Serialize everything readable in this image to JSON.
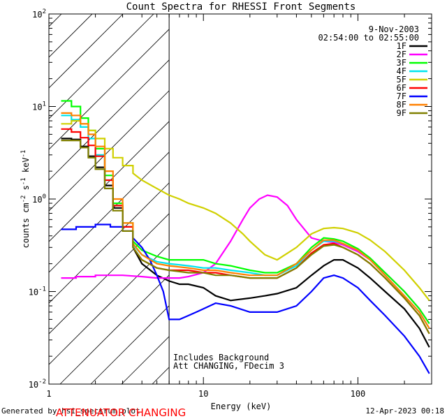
{
  "chart_data": {
    "type": "line",
    "title": "Count Spectra for RHESSI Front Segments",
    "xlabel": "Energy (keV)",
    "ylabel": "counts cm^-2 s^-1 keV^-1",
    "xscale": "log",
    "yscale": "log",
    "xlim": [
      1,
      300
    ],
    "ylim": [
      0.01,
      100
    ],
    "x_ticks": [
      "1",
      "10",
      "100"
    ],
    "y_ticks": [
      "10^-2",
      "10^-1",
      "10^0",
      "10^1",
      "10^2"
    ],
    "legend_location": "top-right",
    "shaded_region_keV": [
      1,
      6
    ],
    "date": "9-Nov-2003",
    "time_range": "02:54:00 to 02:55:00",
    "annotations": [
      "Includes Background",
      "Att CHANGING, FDecim 3"
    ],
    "series": [
      {
        "name": "1F",
        "color": "#000000",
        "x": [
          1.2,
          1.4,
          1.6,
          1.8,
          2.0,
          2.3,
          2.6,
          3.0,
          3.5,
          4.0,
          5.0,
          6.0,
          7.0,
          8.0,
          10.0,
          12.0,
          15.0,
          20.0,
          25.0,
          30.0,
          40.0,
          50.0,
          60.0,
          70.0,
          80.0,
          100.0,
          120.0,
          150.0,
          200.0,
          250.0,
          290.0
        ],
        "y": [
          4.5,
          4.4,
          3.7,
          2.9,
          2.2,
          1.4,
          0.8,
          0.5,
          0.3,
          0.2,
          0.15,
          0.13,
          0.12,
          0.12,
          0.11,
          0.09,
          0.08,
          0.085,
          0.09,
          0.095,
          0.11,
          0.15,
          0.19,
          0.22,
          0.22,
          0.18,
          0.14,
          0.1,
          0.065,
          0.04,
          0.025
        ]
      },
      {
        "name": "2F",
        "color": "#ff00ff",
        "x": [
          1.2,
          1.5,
          2.0,
          3.0,
          4.0,
          5.0,
          6.0,
          7.0,
          8.0,
          10.0,
          12.0,
          15.0,
          18.0,
          20.0,
          23.0,
          26.0,
          30.0,
          35.0,
          40.0,
          50.0,
          60.0,
          70.0,
          80.0,
          100.0,
          120.0,
          150.0,
          200.0,
          250.0,
          290.0
        ],
        "y": [
          0.14,
          0.145,
          0.15,
          0.15,
          0.145,
          0.14,
          0.14,
          0.14,
          0.145,
          0.16,
          0.2,
          0.35,
          0.6,
          0.8,
          1.0,
          1.1,
          1.05,
          0.85,
          0.6,
          0.38,
          0.35,
          0.34,
          0.32,
          0.27,
          0.22,
          0.16,
          0.1,
          0.065,
          0.045
        ]
      },
      {
        "name": "3F",
        "color": "#00ff00",
        "x": [
          1.2,
          1.4,
          1.6,
          1.8,
          2.0,
          2.3,
          2.6,
          3.0,
          3.5,
          4.0,
          5.0,
          6.0,
          8.0,
          10.0,
          12.0,
          15.0,
          20.0,
          25.0,
          30.0,
          40.0,
          50.0,
          60.0,
          70.0,
          80.0,
          100.0,
          120.0,
          150.0,
          200.0,
          250.0,
          290.0
        ],
        "y": [
          11.5,
          10.0,
          7.5,
          5.5,
          3.5,
          1.8,
          0.9,
          0.55,
          0.35,
          0.28,
          0.24,
          0.22,
          0.22,
          0.22,
          0.2,
          0.19,
          0.17,
          0.16,
          0.16,
          0.2,
          0.3,
          0.38,
          0.37,
          0.35,
          0.29,
          0.23,
          0.16,
          0.1,
          0.065,
          0.045
        ]
      },
      {
        "name": "4F",
        "color": "#00e5ee",
        "x": [
          1.2,
          1.4,
          1.6,
          1.8,
          2.0,
          2.3,
          2.6,
          3.0,
          3.5,
          4.0,
          5.0,
          6.0,
          8.0,
          10.0,
          12.0,
          15.0,
          20.0,
          25.0,
          30.0,
          40.0,
          50.0,
          60.0,
          70.0,
          80.0,
          100.0,
          120.0,
          150.0,
          200.0,
          250.0,
          290.0
        ],
        "y": [
          8.0,
          7.2,
          6.0,
          4.5,
          3.0,
          1.6,
          0.85,
          0.5,
          0.32,
          0.25,
          0.21,
          0.2,
          0.19,
          0.18,
          0.18,
          0.17,
          0.16,
          0.15,
          0.15,
          0.19,
          0.28,
          0.35,
          0.35,
          0.33,
          0.28,
          0.22,
          0.15,
          0.09,
          0.06,
          0.04
        ]
      },
      {
        "name": "5F",
        "color": "#d0d000",
        "x": [
          1.2,
          1.4,
          1.6,
          1.8,
          2.0,
          2.3,
          2.6,
          3.0,
          3.5,
          4.0,
          5.0,
          6.0,
          7.0,
          8.0,
          10.0,
          12.0,
          15.0,
          18.0,
          20.0,
          25.0,
          30.0,
          40.0,
          50.0,
          60.0,
          70.0,
          80.0,
          100.0,
          120.0,
          150.0,
          200.0,
          250.0,
          290.0
        ],
        "y": [
          6.5,
          7.0,
          6.5,
          5.5,
          4.5,
          3.5,
          2.8,
          2.3,
          1.9,
          1.6,
          1.3,
          1.1,
          1.0,
          0.9,
          0.8,
          0.7,
          0.55,
          0.42,
          0.35,
          0.25,
          0.22,
          0.3,
          0.42,
          0.48,
          0.49,
          0.48,
          0.43,
          0.36,
          0.27,
          0.17,
          0.11,
          0.08
        ]
      },
      {
        "name": "6F",
        "color": "#ff0000",
        "x": [
          1.2,
          1.4,
          1.6,
          1.8,
          2.0,
          2.3,
          2.6,
          3.0,
          3.5,
          4.0,
          5.0,
          6.0,
          8.0,
          10.0,
          12.0,
          15.0,
          20.0,
          25.0,
          30.0,
          40.0,
          50.0,
          60.0,
          70.0,
          80.0,
          100.0,
          120.0,
          150.0,
          200.0,
          250.0,
          290.0
        ],
        "y": [
          5.7,
          5.3,
          4.6,
          3.8,
          2.9,
          1.6,
          0.85,
          0.5,
          0.3,
          0.22,
          0.18,
          0.17,
          0.17,
          0.16,
          0.16,
          0.15,
          0.14,
          0.14,
          0.14,
          0.18,
          0.26,
          0.32,
          0.33,
          0.3,
          0.25,
          0.2,
          0.14,
          0.085,
          0.055,
          0.035
        ]
      },
      {
        "name": "7F",
        "color": "#0000ff",
        "x": [
          1.2,
          1.5,
          2.0,
          2.5,
          3.0,
          3.5,
          4.0,
          4.5,
          5.0,
          5.5,
          6.0,
          7.0,
          8.0,
          9.0,
          10.0,
          12.0,
          15.0,
          20.0,
          25.0,
          30.0,
          40.0,
          50.0,
          60.0,
          70.0,
          80.0,
          100.0,
          120.0,
          150.0,
          200.0,
          250.0,
          290.0
        ],
        "y": [
          0.47,
          0.5,
          0.53,
          0.5,
          0.45,
          0.38,
          0.3,
          0.22,
          0.15,
          0.1,
          0.05,
          0.05,
          0.055,
          0.06,
          0.065,
          0.075,
          0.07,
          0.06,
          0.06,
          0.06,
          0.07,
          0.1,
          0.14,
          0.15,
          0.14,
          0.11,
          0.08,
          0.055,
          0.033,
          0.02,
          0.013
        ]
      },
      {
        "name": "8F",
        "color": "#ff8000",
        "x": [
          1.2,
          1.4,
          1.6,
          1.8,
          2.0,
          2.3,
          2.6,
          3.0,
          3.5,
          4.0,
          5.0,
          6.0,
          8.0,
          10.0,
          12.0,
          15.0,
          20.0,
          25.0,
          30.0,
          40.0,
          50.0,
          60.0,
          70.0,
          80.0,
          100.0,
          120.0,
          150.0,
          200.0,
          250.0,
          290.0
        ],
        "y": [
          8.5,
          8.0,
          6.5,
          5.0,
          3.7,
          2.0,
          1.0,
          0.55,
          0.33,
          0.25,
          0.2,
          0.19,
          0.18,
          0.17,
          0.17,
          0.16,
          0.15,
          0.15,
          0.15,
          0.2,
          0.28,
          0.36,
          0.36,
          0.33,
          0.28,
          0.22,
          0.15,
          0.09,
          0.06,
          0.04
        ]
      },
      {
        "name": "9F",
        "color": "#808000",
        "x": [
          1.2,
          1.4,
          1.6,
          1.8,
          2.0,
          2.3,
          2.6,
          3.0,
          3.5,
          4.0,
          5.0,
          6.0,
          8.0,
          10.0,
          12.0,
          15.0,
          20.0,
          25.0,
          30.0,
          40.0,
          50.0,
          60.0,
          70.0,
          80.0,
          100.0,
          120.0,
          150.0,
          200.0,
          250.0,
          290.0
        ],
        "y": [
          4.3,
          4.3,
          3.6,
          2.8,
          2.1,
          1.3,
          0.75,
          0.45,
          0.3,
          0.22,
          0.18,
          0.17,
          0.16,
          0.16,
          0.15,
          0.15,
          0.14,
          0.14,
          0.14,
          0.18,
          0.25,
          0.31,
          0.32,
          0.3,
          0.25,
          0.2,
          0.14,
          0.085,
          0.055,
          0.035
        ]
      }
    ]
  },
  "footer": {
    "generated_by": "Generated by hsi_spectrum_plot",
    "timestamp": "12-Apr-2023 00:18",
    "attenuator_status": "ATTENUATOR CHANGING"
  }
}
